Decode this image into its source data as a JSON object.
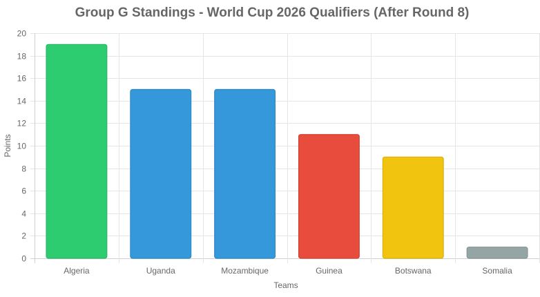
{
  "chart_data": {
    "type": "bar",
    "title": "Group G Standings - World Cup 2026 Qualifiers (After Round 8)",
    "xlabel": "Teams",
    "ylabel": "Points",
    "categories": [
      "Algeria",
      "Uganda",
      "Mozambique",
      "Guinea",
      "Botswana",
      "Somalia"
    ],
    "values": [
      19,
      15,
      15,
      11,
      9,
      1
    ],
    "colors": [
      "#2ecc71",
      "#3498db",
      "#3498db",
      "#e74c3c",
      "#f1c40f",
      "#95a5a6"
    ],
    "ylim": [
      0,
      20
    ],
    "yticks": [
      0,
      2,
      4,
      6,
      8,
      10,
      12,
      14,
      16,
      18,
      20
    ],
    "grid": true,
    "legend": "none"
  }
}
